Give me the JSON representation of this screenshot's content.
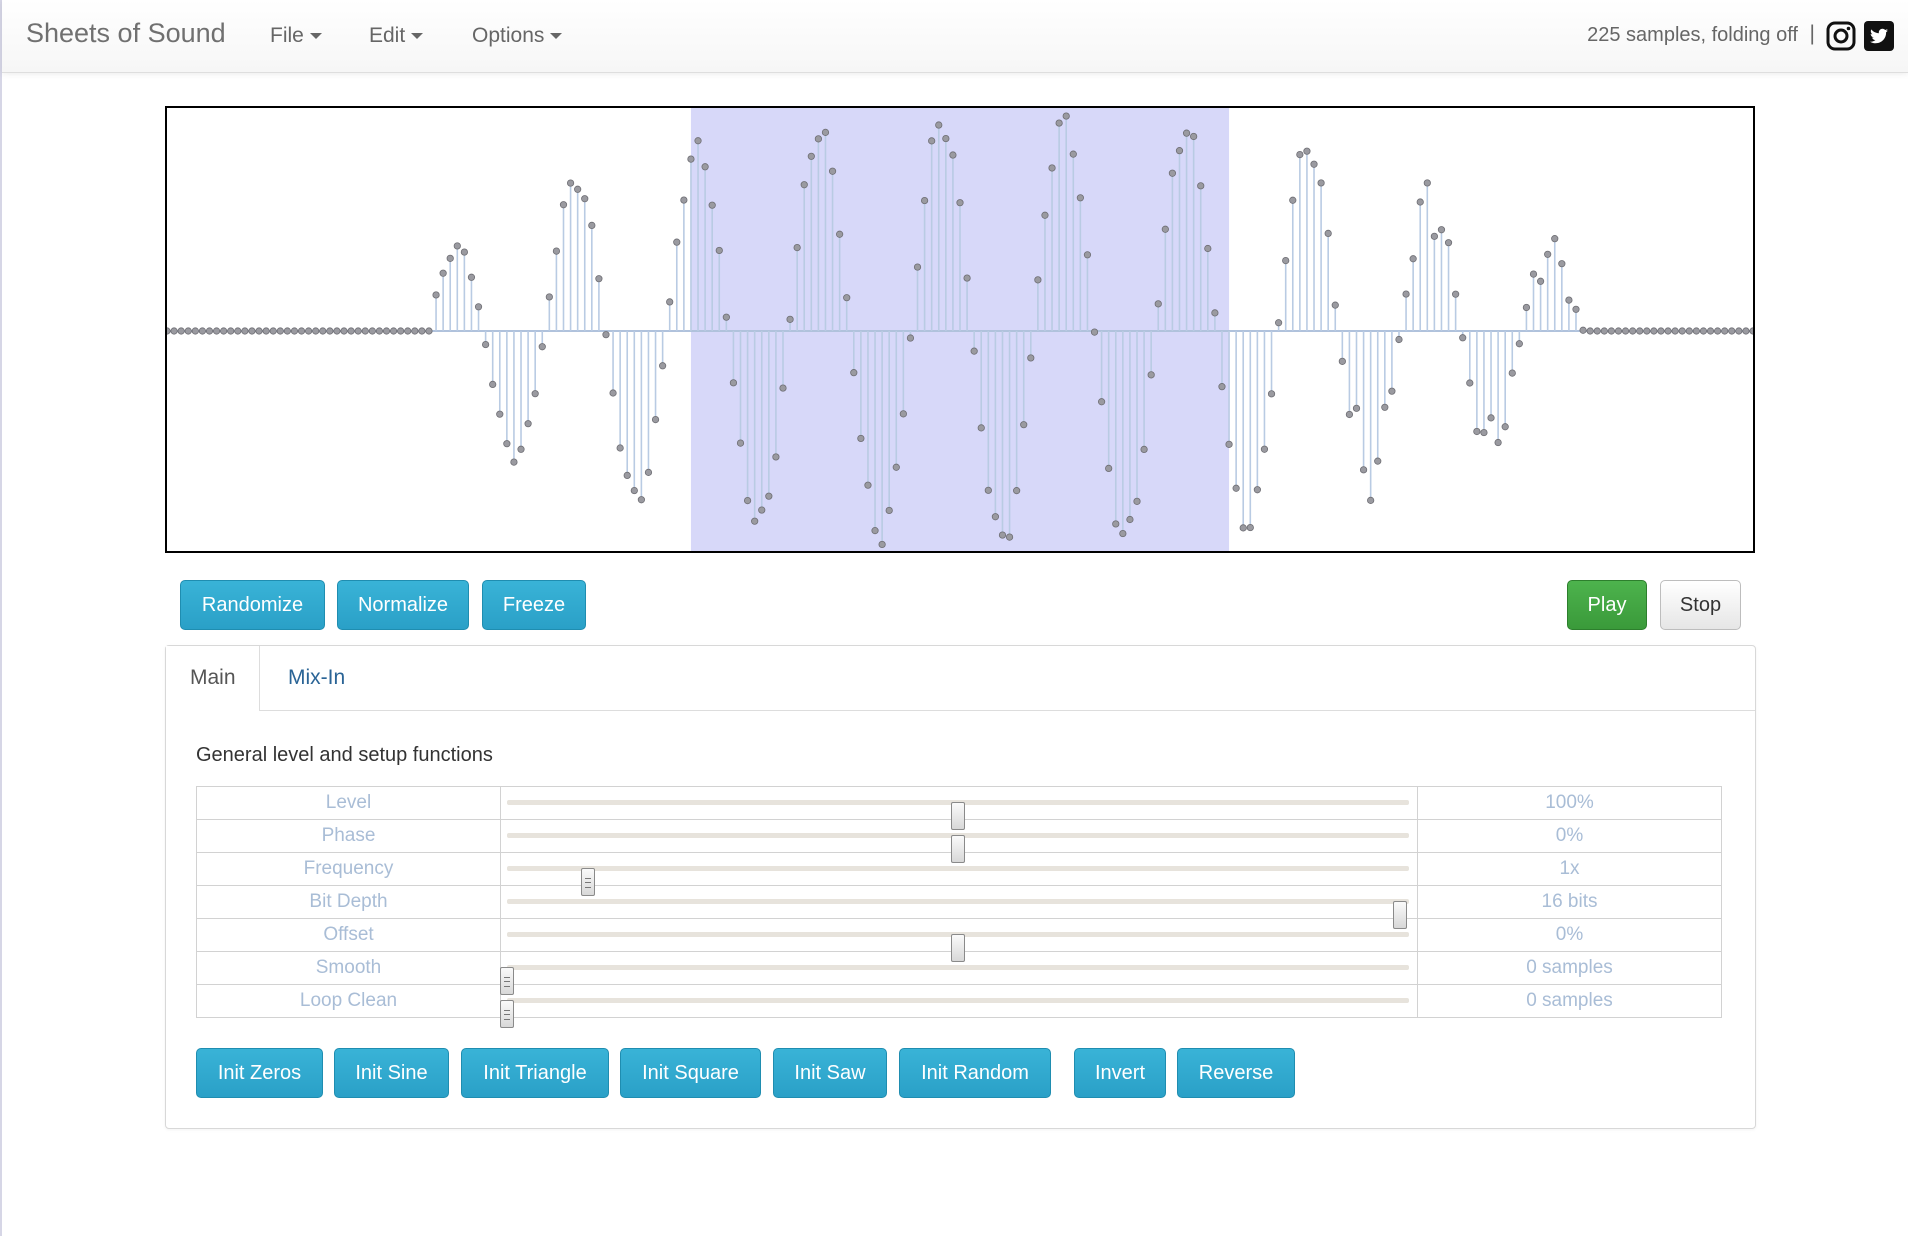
{
  "navbar": {
    "brand": "Sheets of Sound",
    "menus": [
      {
        "label": "File"
      },
      {
        "label": "Edit"
      },
      {
        "label": "Options"
      }
    ],
    "status": "225 samples, folding off",
    "separator": "|",
    "icons": [
      "instagram-icon",
      "twitter-icon"
    ]
  },
  "waveform": {
    "sample_count": 225,
    "silent_lead": 37,
    "silent_tail": 24,
    "selection": {
      "start_sample": 74,
      "end_sample": 150
    },
    "colors": {
      "selection": "#d7d8f9",
      "stem": "#b9cbe3",
      "point": "#9a9aa0",
      "axis": "#b0c2dc"
    }
  },
  "actions": {
    "randomize": "Randomize",
    "normalize": "Normalize",
    "freeze": "Freeze",
    "play": "Play",
    "stop": "Stop"
  },
  "tabs": [
    {
      "label": "Main",
      "active": true
    },
    {
      "label": "Mix-In",
      "active": false
    }
  ],
  "main": {
    "title": "General level and setup functions",
    "params": [
      {
        "label": "Level",
        "value": "100%",
        "position": 0.5
      },
      {
        "label": "Phase",
        "value": "0%",
        "position": 0.5
      },
      {
        "label": "Frequency",
        "value": "1x",
        "position": 0.09
      },
      {
        "label": "Bit Depth",
        "value": "16 bits",
        "position": 0.99
      },
      {
        "label": "Offset",
        "value": "0%",
        "position": 0.5
      },
      {
        "label": "Smooth",
        "value": "0 samples",
        "position": 0.0
      },
      {
        "label": "Loop Clean",
        "value": "0 samples",
        "position": 0.0
      }
    ],
    "init_buttons": {
      "zeros": "Init Zeros",
      "sine": "Init Sine",
      "triangle": "Init Triangle",
      "square": "Init Square",
      "saw": "Init Saw",
      "random": "Init Random",
      "invert": "Invert",
      "reverse": "Reverse"
    }
  }
}
